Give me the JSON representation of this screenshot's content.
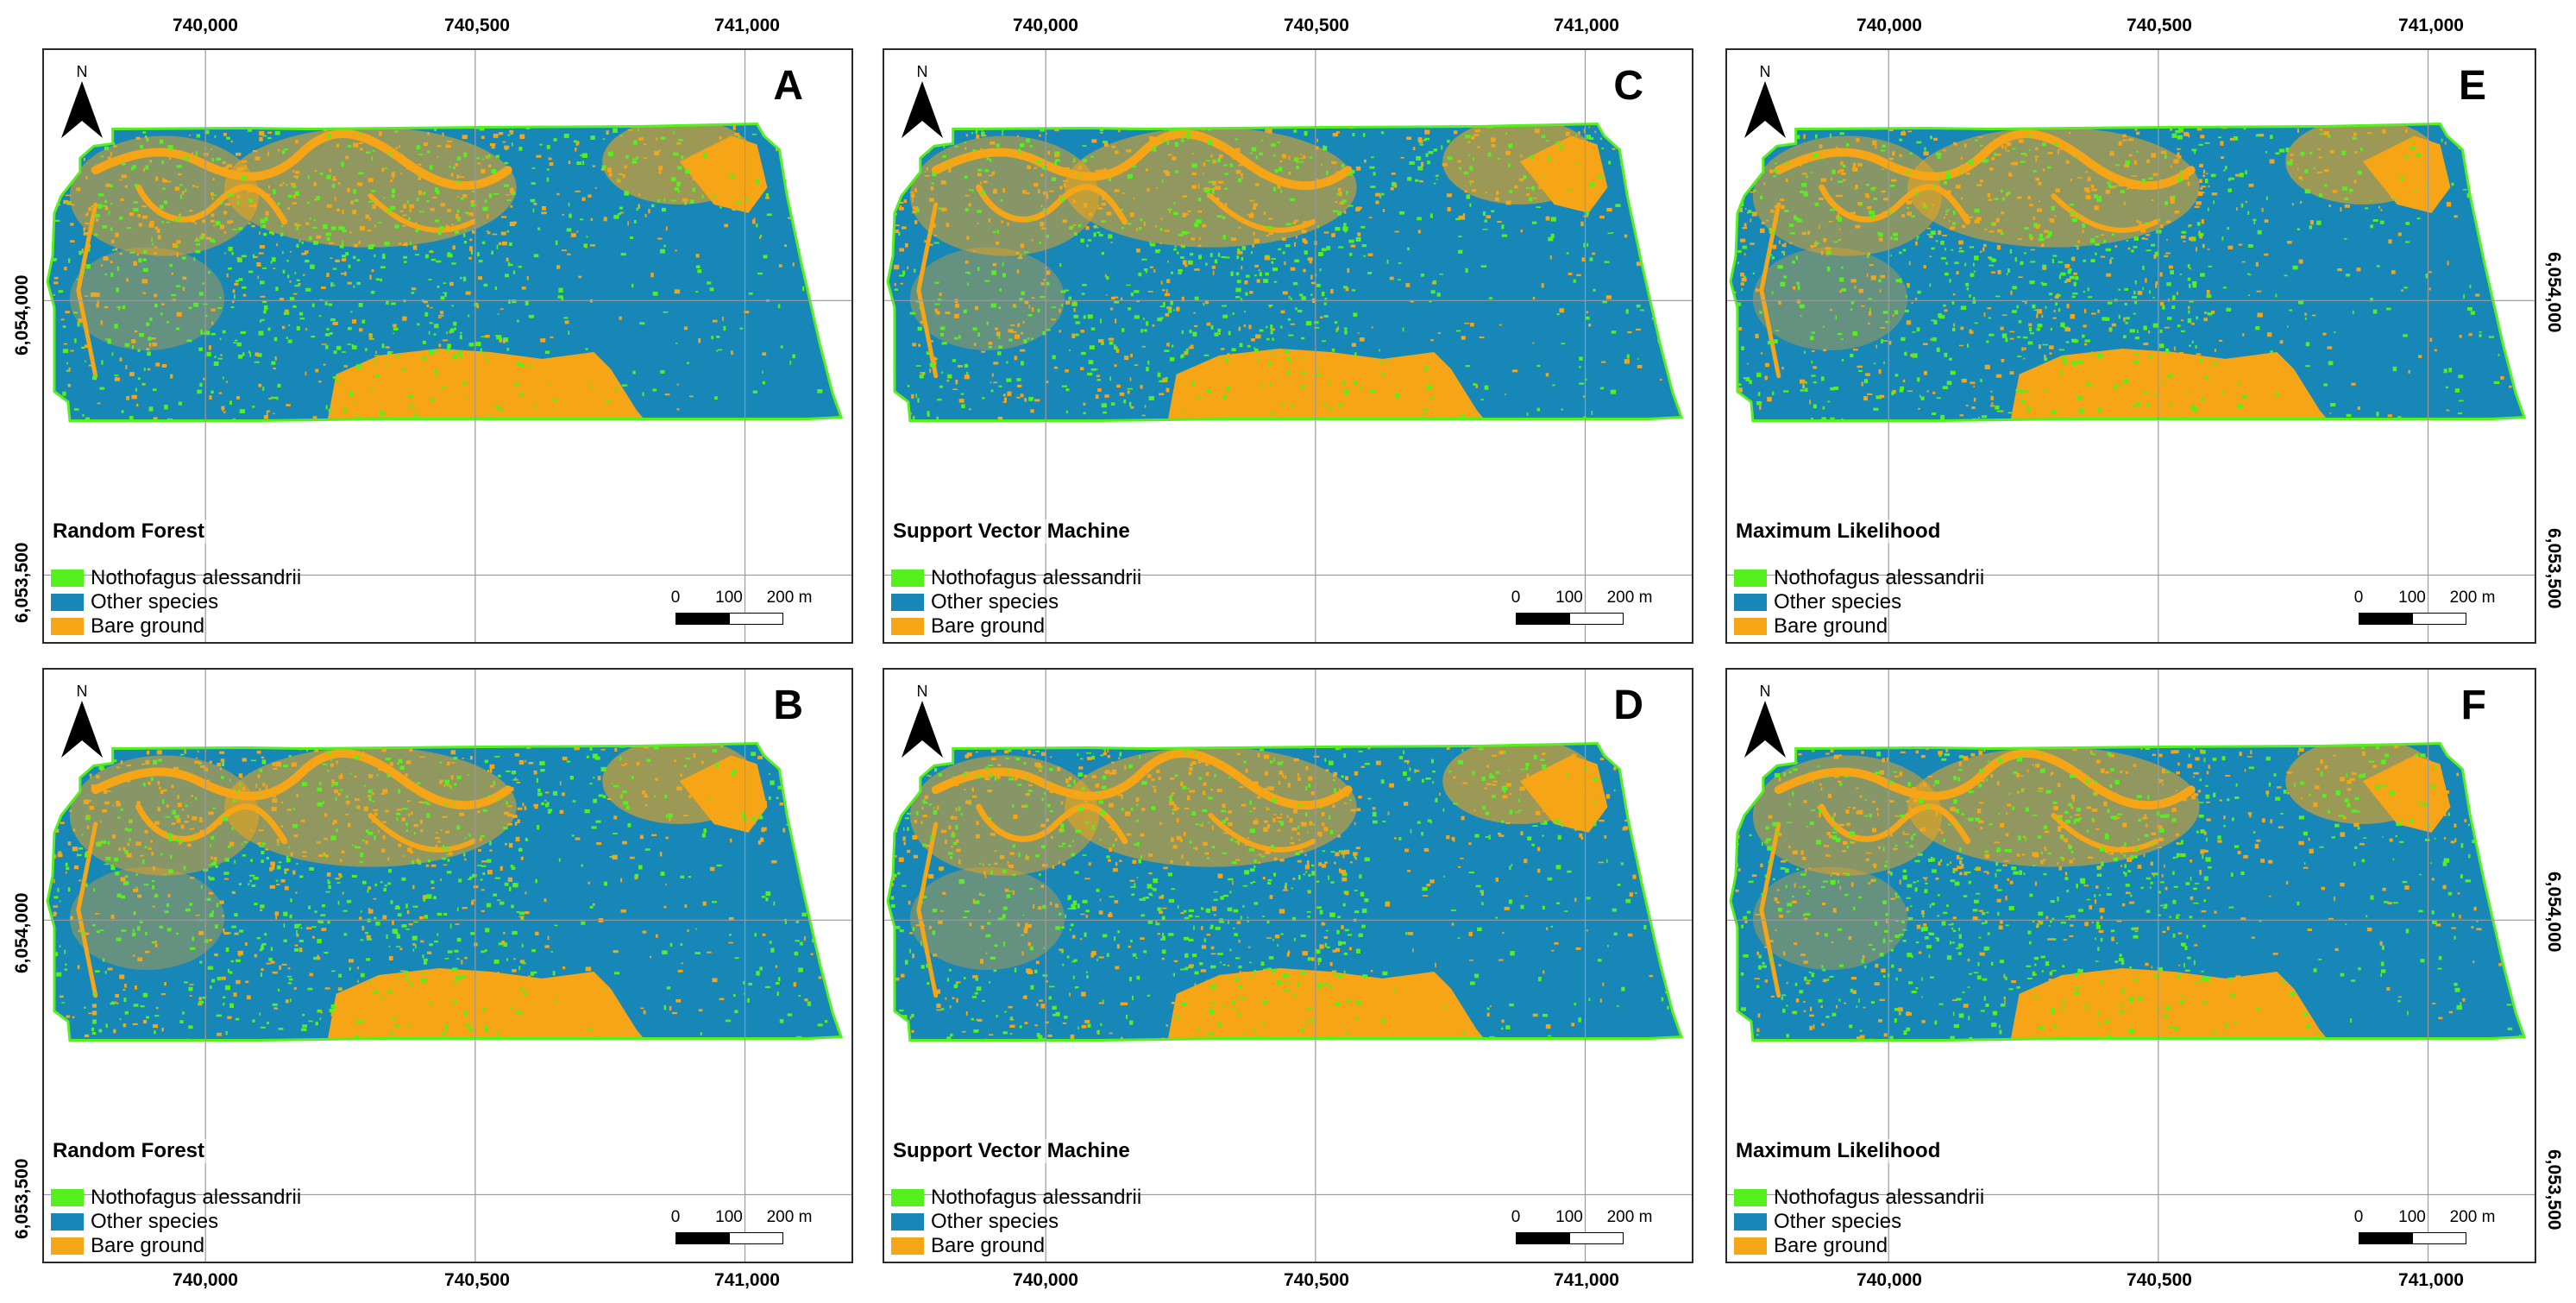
{
  "axes": {
    "x_ticks": [
      "740,000",
      "740,500",
      "741,000"
    ],
    "y_ticks": [
      "6,054,000",
      "6,053,500"
    ]
  },
  "legend": {
    "items": [
      {
        "label": "Nothofagus alessandrii",
        "color": "#55f01e"
      },
      {
        "label": "Other species",
        "color": "#1787b8"
      },
      {
        "label": "Bare ground",
        "color": "#f5a516"
      }
    ]
  },
  "scale": {
    "labels": [
      "0",
      "100",
      "200 m"
    ]
  },
  "north_label": "N",
  "panels": [
    {
      "letter": "A",
      "method": "Random Forest"
    },
    {
      "letter": "C",
      "method": "Support Vector Machine"
    },
    {
      "letter": "E",
      "method": "Maximum Likelihood"
    },
    {
      "letter": "B",
      "method": "Random Forest"
    },
    {
      "letter": "D",
      "method": "Support Vector Machine"
    },
    {
      "letter": "F",
      "method": "Maximum Likelihood"
    }
  ]
}
